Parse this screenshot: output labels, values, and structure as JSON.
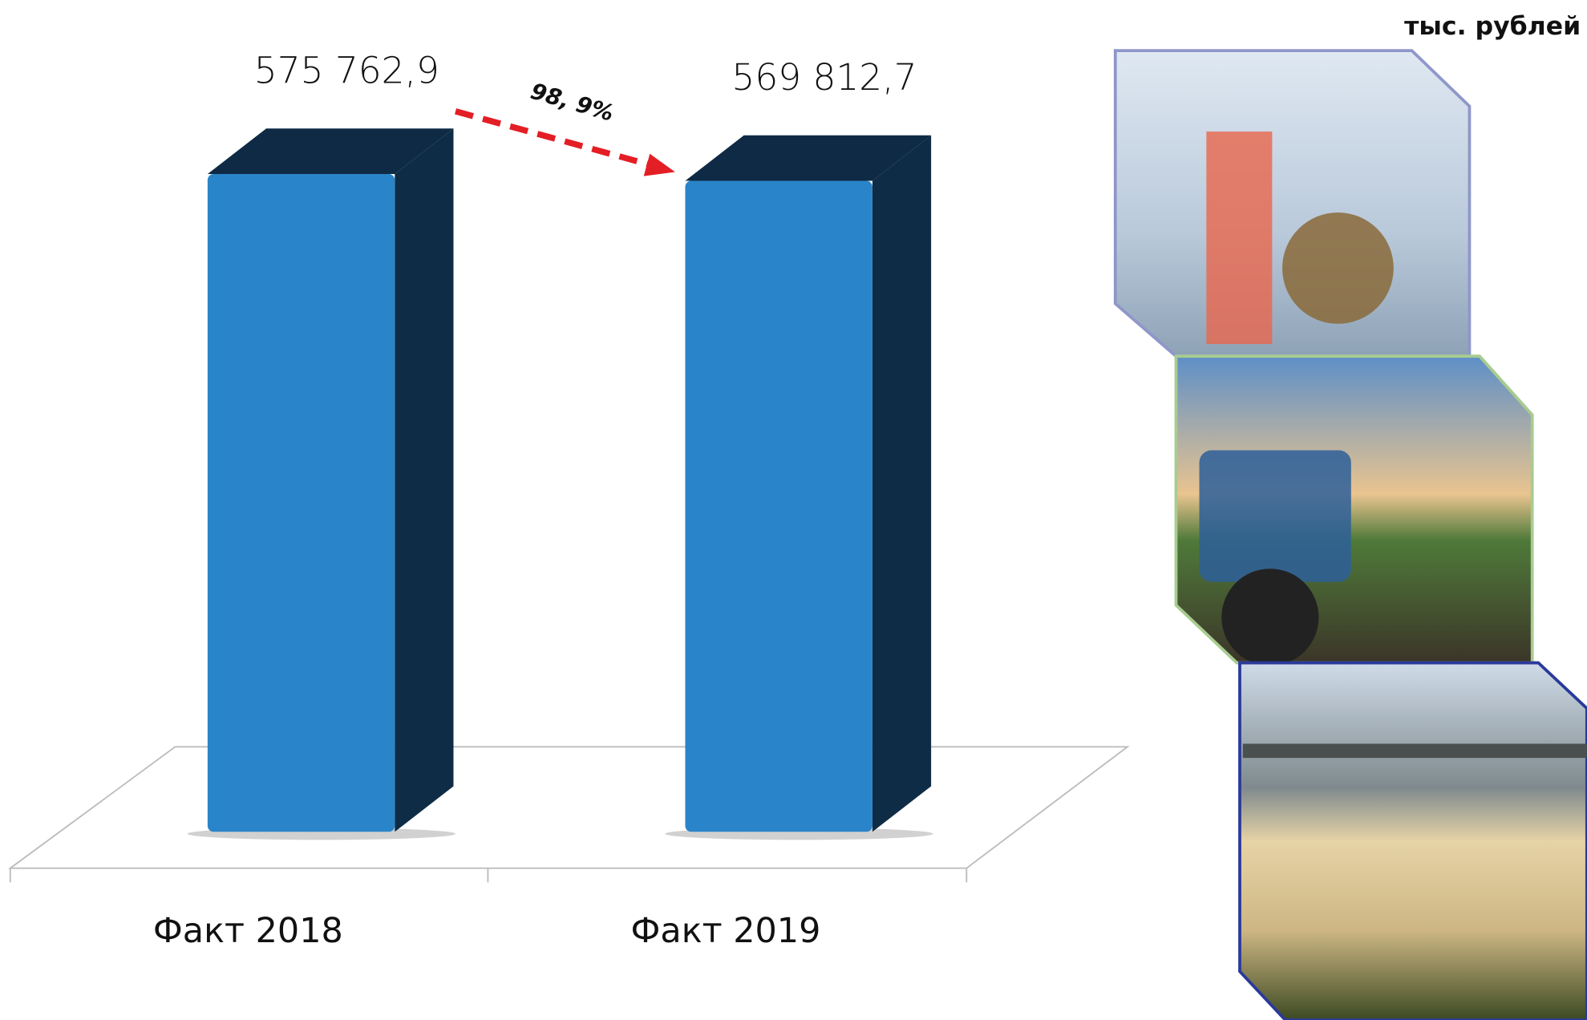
{
  "chart_data": {
    "type": "bar3d",
    "unit": "тыс. рублей",
    "categories": [
      "Факт 2018",
      "Факт 2019"
    ],
    "values": [
      575762.9,
      569812.7
    ],
    "value_labels": [
      "575 762,9",
      "569 812,7"
    ],
    "annotation": "98, 9%",
    "color": "#2a84c9",
    "side_color": "#0f2c46",
    "top_color": "#0e2a45",
    "arrow_color": "#e31e24"
  }
}
